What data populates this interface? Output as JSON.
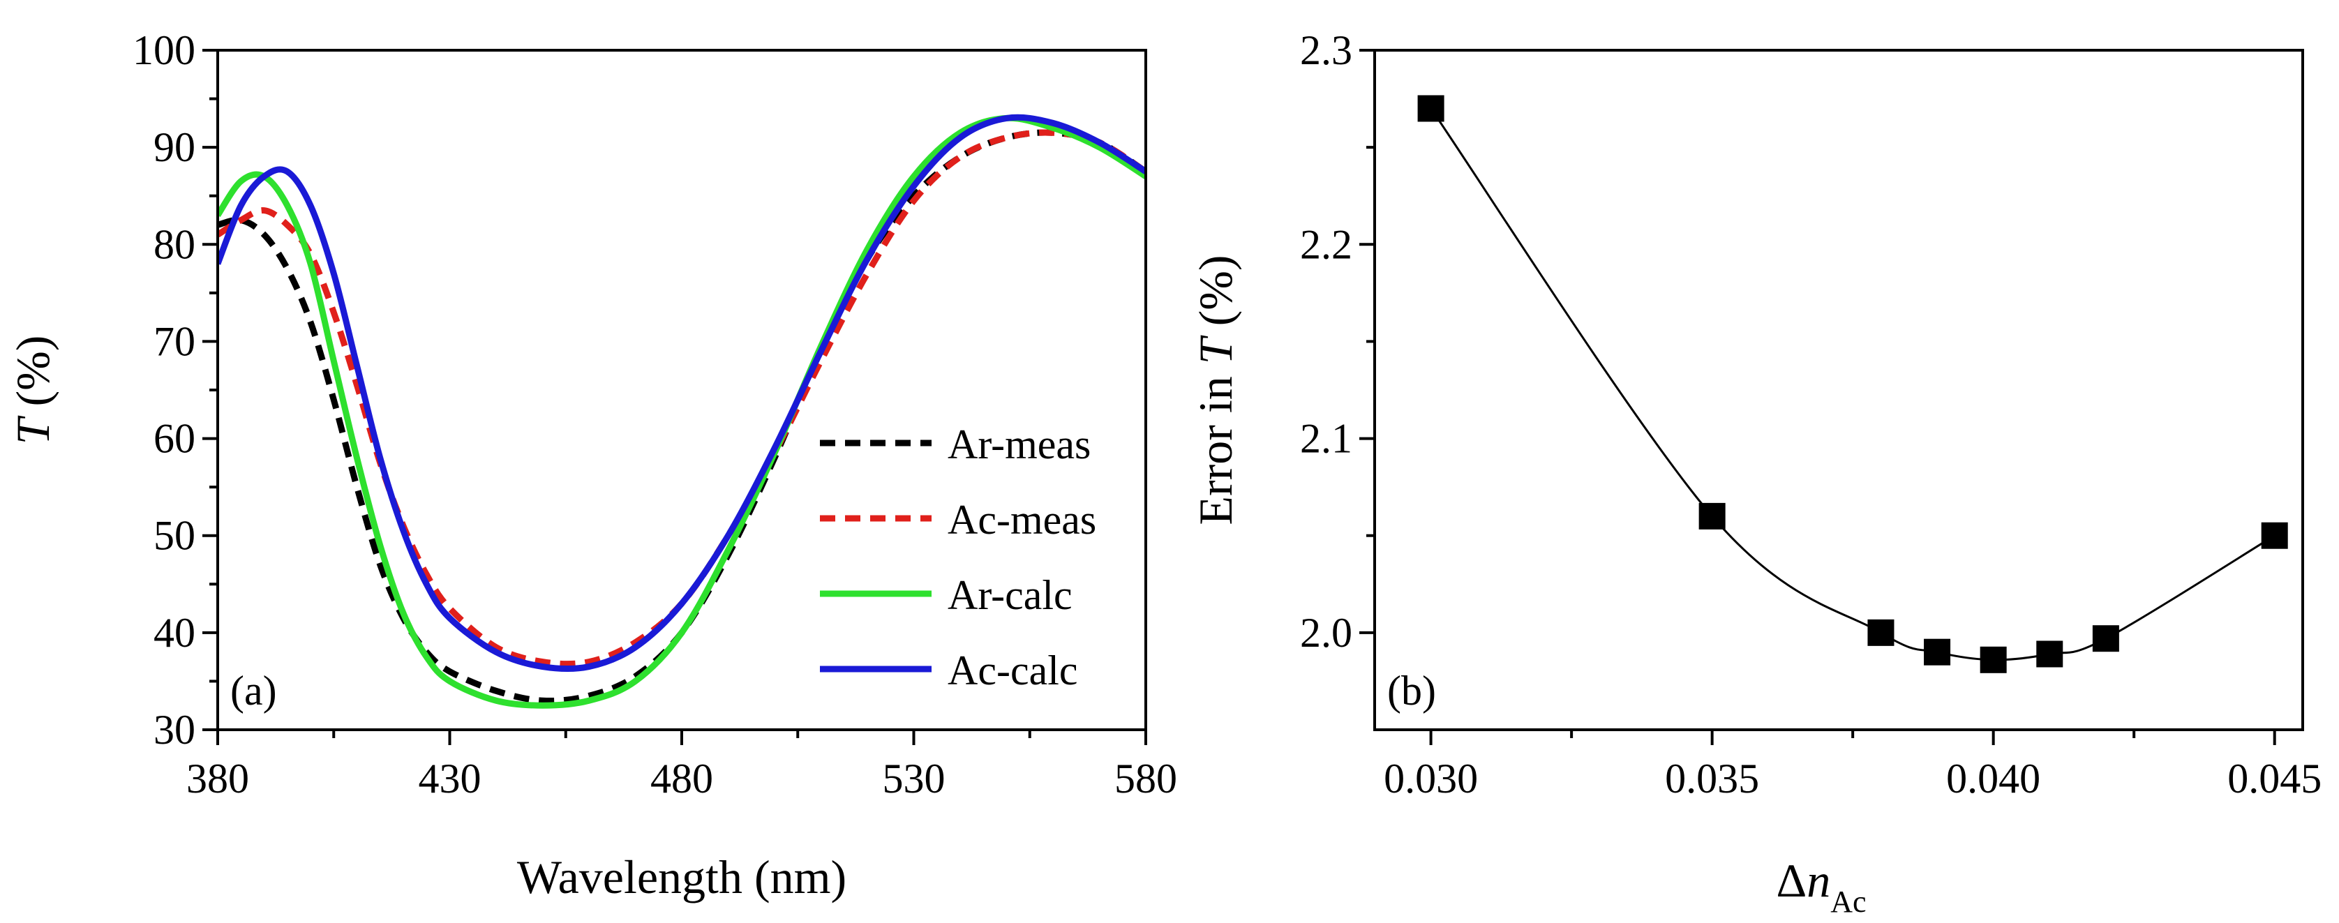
{
  "chart_data": [
    {
      "type": "line",
      "panel_label": "(a)",
      "xlabel": "Wavelength (nm)",
      "ylabel_italic": "T",
      "ylabel_rest": " (%)",
      "xlim": [
        380,
        580
      ],
      "ylim": [
        30,
        100
      ],
      "xticks": [
        380,
        430,
        480,
        530,
        580
      ],
      "yticks": [
        30,
        40,
        50,
        60,
        70,
        80,
        90,
        100
      ],
      "legend_position": "lower-right",
      "series": [
        {
          "name": "Ar-meas",
          "color": "#000000",
          "style": "dashed",
          "x": [
            380,
            385,
            390,
            395,
            400,
            405,
            410,
            415,
            420,
            425,
            430,
            440,
            450,
            460,
            470,
            480,
            490,
            500,
            510,
            520,
            530,
            540,
            550,
            560,
            570,
            580
          ],
          "y": [
            82,
            82.5,
            81,
            77.5,
            72,
            64,
            55,
            47,
            41.5,
            38,
            36,
            34,
            33,
            33.5,
            35.5,
            40,
            48,
            58,
            69,
            78.5,
            85,
            89,
            91,
            91.5,
            90.5,
            87.5
          ]
        },
        {
          "name": "Ac-meas",
          "color": "#e0201b",
          "style": "dashed",
          "x": [
            380,
            385,
            390,
            395,
            400,
            405,
            410,
            415,
            420,
            425,
            430,
            440,
            450,
            460,
            470,
            480,
            490,
            500,
            510,
            520,
            530,
            540,
            550,
            560,
            570,
            580
          ],
          "y": [
            81,
            82.5,
            83.5,
            82,
            79,
            73,
            65.5,
            57.5,
            51,
            46,
            42.5,
            38.5,
            37,
            37,
            39,
            43,
            50,
            58.5,
            68,
            77,
            84.5,
            89,
            91,
            91.5,
            90.5,
            87.5
          ]
        },
        {
          "name": "Ar-calc",
          "color": "#2ee02e",
          "style": "solid",
          "x": [
            380,
            385,
            390,
            395,
            400,
            405,
            410,
            415,
            420,
            425,
            430,
            440,
            450,
            460,
            470,
            480,
            490,
            500,
            510,
            520,
            530,
            540,
            550,
            560,
            570,
            580
          ],
          "y": [
            83,
            86.5,
            87,
            84,
            78,
            68,
            58,
            49,
            42,
            37.5,
            35,
            33,
            32.5,
            33,
            35,
            40,
            48.5,
            58.5,
            69.5,
            79.5,
            87,
            91.5,
            93,
            92,
            90,
            87
          ]
        },
        {
          "name": "Ac-calc",
          "color": "#1a1ad6",
          "style": "solid",
          "x": [
            380,
            385,
            390,
            395,
            400,
            405,
            410,
            415,
            420,
            425,
            430,
            440,
            450,
            460,
            470,
            480,
            490,
            500,
            510,
            520,
            530,
            540,
            550,
            560,
            570,
            580
          ],
          "y": [
            78,
            84,
            87,
            87.5,
            84,
            77,
            67.5,
            58,
            50.5,
            45,
            41.5,
            38,
            36.5,
            36.5,
            38.5,
            43,
            50,
            59,
            69,
            78.5,
            86,
            91,
            93,
            92.5,
            90.5,
            87.5
          ]
        }
      ]
    },
    {
      "type": "scatter",
      "panel_label": "(b)",
      "xlabel_prefix": "Δ",
      "xlabel_italic": "n",
      "xlabel_sub": "Ac",
      "ylabel_pre": "Error in ",
      "ylabel_italic": "T",
      "ylabel_post": " (%)",
      "xlim": [
        0.029,
        0.0455
      ],
      "ylim": [
        1.95,
        2.3
      ],
      "xticks": [
        "0.030",
        "0.035",
        "0.040",
        "0.045"
      ],
      "xtick_values": [
        0.03,
        0.035,
        0.04,
        0.045
      ],
      "yticks": [
        "2.0",
        "2.1",
        "2.2",
        "2.3"
      ],
      "ytick_values": [
        2.0,
        2.1,
        2.2,
        2.3
      ],
      "marker": "square",
      "fit_curve": "smooth",
      "points": {
        "x": [
          0.03,
          0.035,
          0.038,
          0.039,
          0.04,
          0.041,
          0.042,
          0.045
        ],
        "y": [
          2.27,
          2.06,
          2.0,
          1.99,
          1.986,
          1.989,
          1.997,
          2.05
        ]
      }
    }
  ]
}
